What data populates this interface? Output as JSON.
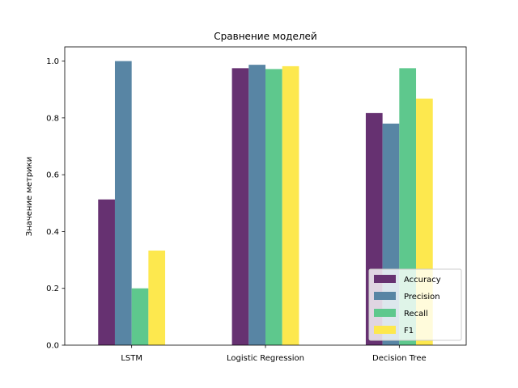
{
  "chart_data": {
    "type": "bar",
    "title": "Сравнение моделей",
    "xlabel": "",
    "ylabel": "Значение метрики",
    "categories": [
      "LSTM",
      "Logistic Regression",
      "Decision Tree"
    ],
    "series": [
      {
        "name": "Accuracy",
        "color": "#663171",
        "values": [
          0.513,
          0.975,
          0.817
        ]
      },
      {
        "name": "Precision",
        "color": "#5885a4",
        "values": [
          1.0,
          0.987,
          0.78
        ]
      },
      {
        "name": "Recall",
        "color": "#5ec88d",
        "values": [
          0.2,
          0.972,
          0.975
        ]
      },
      {
        "name": "F1",
        "color": "#fde84e",
        "values": [
          0.333,
          0.982,
          0.868
        ]
      }
    ],
    "ylim": [
      0,
      1.05
    ],
    "yticks": [
      "0.0",
      "0.2",
      "0.4",
      "0.6",
      "0.8",
      "1.0"
    ],
    "legend_position": "lower right",
    "grid": false
  }
}
